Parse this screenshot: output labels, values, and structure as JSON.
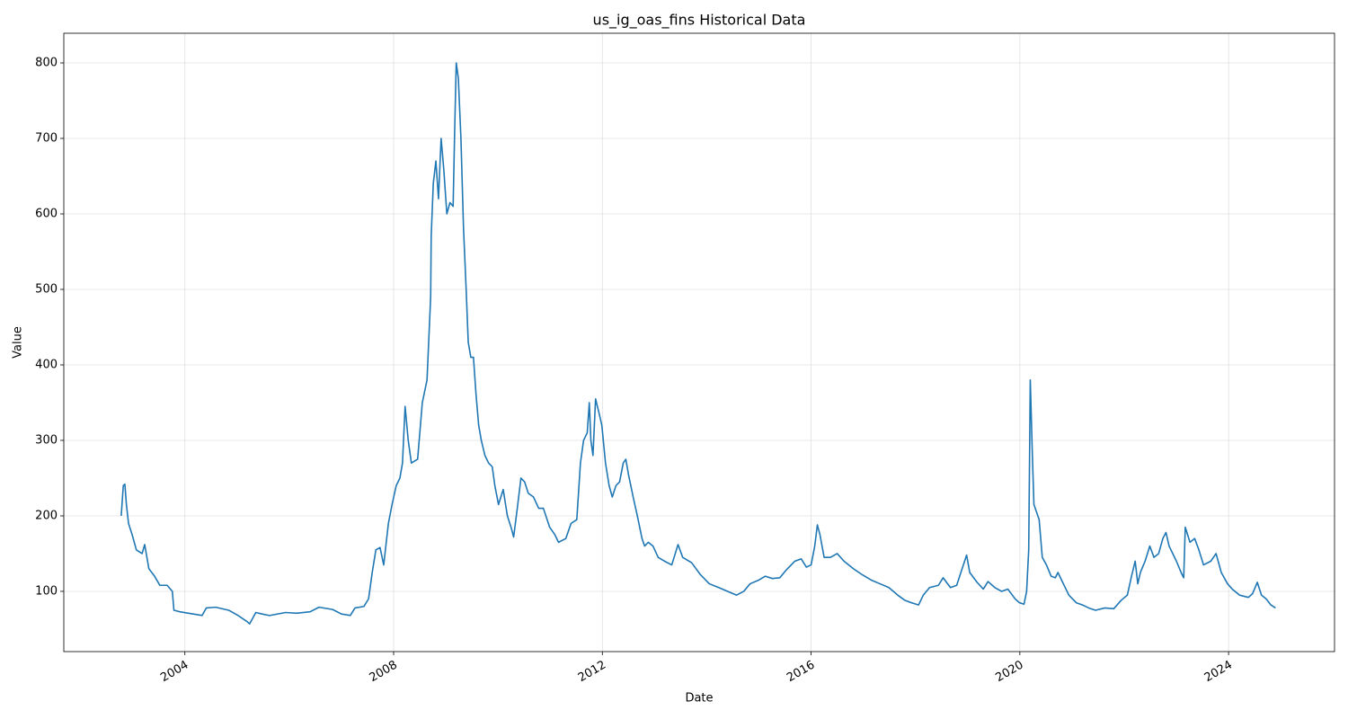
{
  "chart_data": {
    "type": "line",
    "title": "us_ig_oas_fins Historical Data",
    "xlabel": "Date",
    "ylabel": "Value",
    "color": "#1f77b4",
    "grid": true,
    "xlim": [
      2001.68,
      2026.03
    ],
    "xticks": [
      2004,
      2008,
      2012,
      2016,
      2020,
      2024
    ],
    "ylim": [
      20.2,
      839.3
    ],
    "yticks": [
      100,
      200,
      300,
      400,
      500,
      600,
      700,
      800
    ],
    "x": [
      2002.78,
      2002.82,
      2002.85,
      2002.88,
      2002.92,
      2002.99,
      2003.07,
      2003.18,
      2003.23,
      2003.31,
      2003.42,
      2003.52,
      2003.66,
      2003.76,
      2003.79,
      2003.9,
      2004.07,
      2004.33,
      2004.41,
      2004.59,
      2004.84,
      2005.02,
      2005.19,
      2005.24,
      2005.36,
      2005.48,
      2005.62,
      2005.93,
      2006.14,
      2006.4,
      2006.57,
      2006.83,
      2007.0,
      2007.17,
      2007.26,
      2007.43,
      2007.52,
      2007.59,
      2007.66,
      2007.74,
      2007.81,
      2007.9,
      2007.97,
      2008.05,
      2008.12,
      2008.17,
      2008.22,
      2008.28,
      2008.34,
      2008.46,
      2008.55,
      2008.64,
      2008.71,
      2008.72,
      2008.76,
      2008.81,
      2008.86,
      2008.91,
      2008.96,
      2009.02,
      2009.08,
      2009.14,
      2009.17,
      2009.2,
      2009.24,
      2009.29,
      2009.34,
      2009.39,
      2009.43,
      2009.48,
      2009.53,
      2009.58,
      2009.63,
      2009.68,
      2009.75,
      2009.82,
      2009.89,
      2009.94,
      2010.01,
      2010.1,
      2010.18,
      2010.25,
      2010.3,
      2010.37,
      2010.44,
      2010.51,
      2010.58,
      2010.68,
      2010.78,
      2010.87,
      2010.99,
      2011.09,
      2011.16,
      2011.3,
      2011.4,
      2011.51,
      2011.58,
      2011.64,
      2011.71,
      2011.75,
      2011.78,
      2011.82,
      2011.87,
      2011.94,
      2011.99,
      2012.06,
      2012.13,
      2012.19,
      2012.26,
      2012.33,
      2012.4,
      2012.45,
      2012.5,
      2012.59,
      2012.67,
      2012.76,
      2012.81,
      2012.88,
      2012.97,
      2013.07,
      2013.19,
      2013.33,
      2013.45,
      2013.54,
      2013.71,
      2013.88,
      2014.05,
      2014.23,
      2014.4,
      2014.57,
      2014.71,
      2014.83,
      2015.0,
      2015.12,
      2015.26,
      2015.4,
      2015.52,
      2015.69,
      2015.81,
      2015.91,
      2016.0,
      2016.07,
      2016.12,
      2016.17,
      2016.25,
      2016.37,
      2016.5,
      2016.63,
      2016.81,
      2016.98,
      2017.15,
      2017.32,
      2017.49,
      2017.66,
      2017.8,
      2017.92,
      2018.06,
      2018.15,
      2018.27,
      2018.44,
      2018.53,
      2018.67,
      2018.79,
      2018.87,
      2018.98,
      2019.04,
      2019.18,
      2019.3,
      2019.39,
      2019.52,
      2019.65,
      2019.77,
      2019.91,
      2019.99,
      2020.08,
      2020.13,
      2020.17,
      2020.2,
      2020.24,
      2020.27,
      2020.32,
      2020.37,
      2020.43,
      2020.51,
      2020.6,
      2020.68,
      2020.73,
      2020.82,
      2020.94,
      2021.08,
      2021.2,
      2021.32,
      2021.45,
      2021.63,
      2021.8,
      2021.94,
      2022.06,
      2022.14,
      2022.21,
      2022.26,
      2022.31,
      2022.4,
      2022.49,
      2022.57,
      2022.66,
      2022.74,
      2022.8,
      2022.86,
      2023.0,
      2023.09,
      2023.14,
      2023.17,
      2023.26,
      2023.35,
      2023.43,
      2023.52,
      2023.66,
      2023.76,
      2023.86,
      2023.98,
      2024.07,
      2024.21,
      2024.38,
      2024.46,
      2024.55,
      2024.63,
      2024.72,
      2024.81,
      2024.9
    ],
    "values": [
      200,
      240,
      242,
      215,
      190,
      175,
      155,
      150,
      162,
      130,
      120,
      108,
      108,
      100,
      75,
      73,
      71,
      68,
      78,
      79,
      75,
      68,
      60,
      57,
      72,
      70,
      68,
      72,
      71,
      73,
      79,
      76,
      70,
      68,
      78,
      80,
      90,
      125,
      155,
      158,
      135,
      190,
      215,
      240,
      250,
      270,
      345,
      300,
      270,
      275,
      350,
      380,
      490,
      570,
      640,
      670,
      620,
      700,
      660,
      600,
      615,
      610,
      710,
      800,
      780,
      700,
      580,
      500,
      430,
      410,
      410,
      360,
      320,
      300,
      280,
      270,
      265,
      240,
      215,
      235,
      200,
      185,
      172,
      210,
      250,
      245,
      230,
      225,
      210,
      210,
      185,
      175,
      165,
      170,
      190,
      195,
      270,
      300,
      310,
      350,
      300,
      280,
      355,
      335,
      320,
      270,
      240,
      225,
      240,
      245,
      270,
      275,
      255,
      225,
      200,
      170,
      160,
      165,
      160,
      145,
      140,
      135,
      162,
      145,
      138,
      122,
      110,
      105,
      100,
      95,
      100,
      110,
      115,
      120,
      117,
      118,
      128,
      140,
      143,
      132,
      135,
      160,
      188,
      175,
      145,
      145,
      150,
      140,
      130,
      122,
      115,
      110,
      105,
      95,
      88,
      85,
      82,
      95,
      105,
      108,
      118,
      105,
      108,
      125,
      148,
      125,
      112,
      103,
      113,
      105,
      100,
      103,
      90,
      85,
      83,
      100,
      155,
      380,
      280,
      215,
      205,
      195,
      145,
      135,
      120,
      118,
      125,
      112,
      95,
      85,
      82,
      78,
      75,
      78,
      77,
      88,
      95,
      120,
      140,
      110,
      125,
      140,
      160,
      145,
      150,
      170,
      178,
      160,
      140,
      125,
      118,
      185,
      165,
      170,
      155,
      135,
      140,
      150,
      125,
      110,
      103,
      95,
      92,
      97,
      112,
      95,
      90,
      82,
      78
    ]
  }
}
